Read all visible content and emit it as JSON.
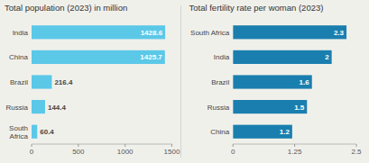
{
  "chart_data": [
    {
      "type": "bar",
      "orientation": "horizontal",
      "title": "Total population (2023) in million",
      "categories": [
        "India",
        "China",
        "Brazil",
        "Russia",
        "South\nAfrica"
      ],
      "values": [
        1428.6,
        1425.7,
        216.4,
        144.4,
        60.4
      ],
      "color": "#5BC8E8",
      "data_labels": true,
      "xlim": [
        0,
        1500
      ],
      "xticks": [
        0,
        500,
        1000,
        1500
      ]
    },
    {
      "type": "bar",
      "orientation": "horizontal",
      "title": "Total fertility rate per woman (2023)",
      "categories": [
        "South Africa",
        "India",
        "Brazil",
        "Russia",
        "China"
      ],
      "values": [
        2.3,
        2.0,
        1.6,
        1.5,
        1.2
      ],
      "color": "#1A7FAF",
      "data_labels": true,
      "xlim": [
        0,
        2.5
      ],
      "xticks": [
        0,
        1.25,
        2.5
      ]
    }
  ]
}
